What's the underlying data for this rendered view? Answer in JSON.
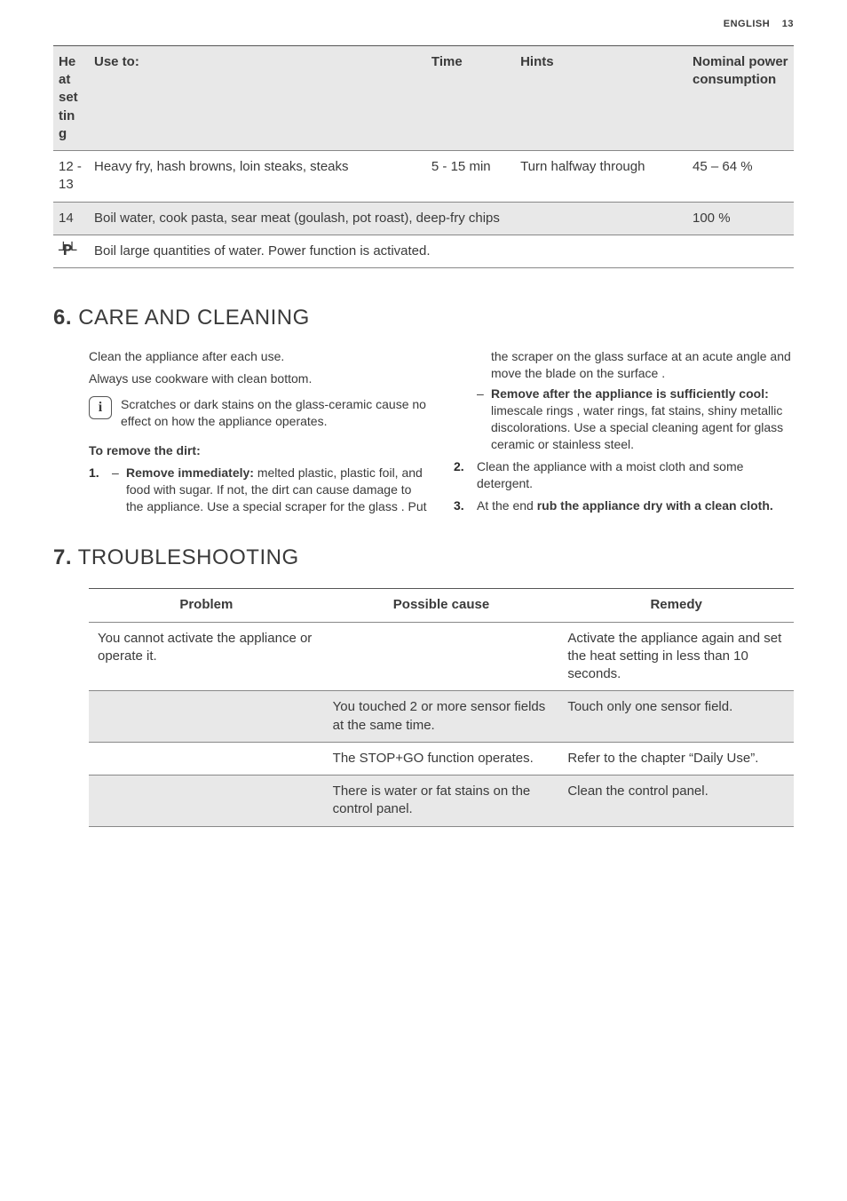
{
  "page": {
    "lang": "ENGLISH",
    "number": "13"
  },
  "cook_table": {
    "row_background_even": "#e8e8e8",
    "row_background_odd": "#ffffff",
    "border_color": "#888888",
    "header_border_top": "#555555",
    "headers": {
      "setting": "He\nat\nset\ntin\ng",
      "use": "Use to:",
      "time": "Time",
      "hints": "Hints",
      "power": "Nominal power consump­tion"
    },
    "rows": [
      {
        "setting": "12 - 13",
        "use": "Heavy fry, hash browns, loin steaks, steaks",
        "time": "5 - 15 min",
        "hints": "Turn halfway through",
        "power": "45 – 64 %"
      },
      {
        "setting": "14",
        "span_text": "Boil water, cook pasta, sear meat (goulash, pot roast), deep-fry chips",
        "power": "100 %"
      },
      {
        "setting_glyph": true,
        "full_text": "Boil large quantities of water. Power function is activated."
      }
    ]
  },
  "care": {
    "heading_num": "6.",
    "heading_text": "CARE AND CLEANING",
    "intro1": "Clean the appliance after each use.",
    "intro2": "Always use cookware with clean bottom.",
    "info": "Scratches or dark stains on the glass-ceramic cause no effect on how the appliance operates.",
    "subhead": "To remove the dirt:",
    "step1_lead": "Remove immediately:",
    "step1_rest": " melted plastic, plastic foil, and food with sugar. If not, the dirt can cause damage to the appliance. Use a special scraper for the glass . Put the scraper on the glass surface at an acute angle and move the blade on the surface .",
    "step1b_lead": "Remove after the appliance is sufficiently cool:",
    "step1b_rest": " limescale rings , water rings, fat stains, shiny metal­lic discolorations. Use a special cleaning agent for glass ceramic or stainless steel.",
    "step2": "Clean the appliance with a moist cloth and some detergent.",
    "step3_pre": "At the end ",
    "step3_bold": "rub the appliance dry with a clean cloth."
  },
  "trouble": {
    "heading_num": "7.",
    "heading_text": "TROUBLESHOOTING",
    "headers": {
      "problem": "Problem",
      "cause": "Possible cause",
      "remedy": "Remedy"
    },
    "row_background_even": "#e8e8e8",
    "row_background_odd": "#ffffff",
    "rows": [
      {
        "problem": "You cannot activate the appliance or operate it.",
        "cause": "",
        "remedy": "Activate the appliance again and set the heat setting in less than 10 seconds."
      },
      {
        "problem": "",
        "cause": "You touched 2 or more sensor fields at the same time.",
        "remedy": "Touch only one sensor field."
      },
      {
        "problem": "",
        "cause": "The STOP+GO function operates.",
        "remedy": "Refer to the chapter “Dai­ly Use”."
      },
      {
        "problem": "",
        "cause": "There is water or fat stains on the control pan­el.",
        "remedy": "Clean the control panel."
      }
    ]
  }
}
